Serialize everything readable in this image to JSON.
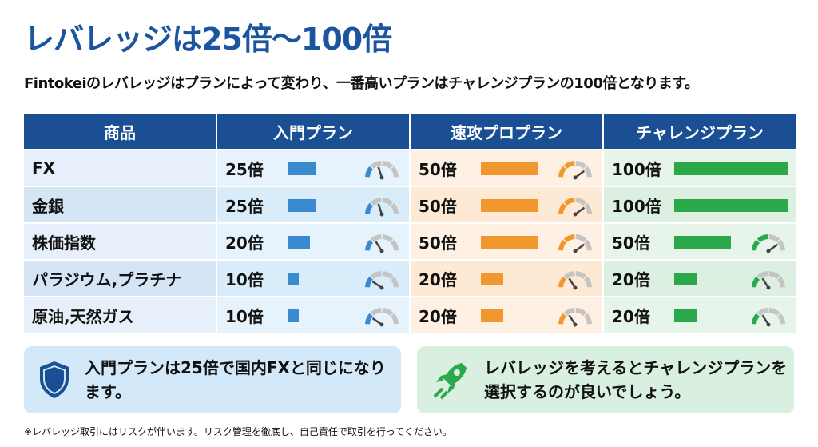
{
  "title": "レバレッジは25倍〜100倍",
  "subtitle": "Fintokeiのレバレッジはプランによって変わり、一番高いプランはチャレンジプランの100倍となります。",
  "table": {
    "headers": [
      "商品",
      "入門プラン",
      "速攻プロプラン",
      "チャレンジプラン"
    ],
    "rows": [
      {
        "product": "FX",
        "values": [
          25,
          50,
          100
        ],
        "labels": [
          "25倍",
          "50倍",
          "100倍"
        ]
      },
      {
        "product": "金銀",
        "values": [
          25,
          50,
          100
        ],
        "labels": [
          "25倍",
          "50倍",
          "100倍"
        ]
      },
      {
        "product": "株価指数",
        "values": [
          20,
          50,
          50
        ],
        "labels": [
          "20倍",
          "50倍",
          "50倍"
        ]
      },
      {
        "product": "パラジウム,プラチナ",
        "values": [
          10,
          20,
          20
        ],
        "labels": [
          "10倍",
          "20倍",
          "20倍"
        ]
      },
      {
        "product": "原油,天然ガス",
        "values": [
          10,
          20,
          20
        ],
        "labels": [
          "10倍",
          "20倍",
          "20倍"
        ]
      }
    ],
    "plan_colors": [
      "#3a8ad0",
      "#f0982e",
      "#2aa84a"
    ],
    "max": 100
  },
  "notes": {
    "left": "入門プランは25倍で国内FXと同じになります。",
    "right": "レバレッジを考えるとチャレンジプランを選択するのが良いでしょう。"
  },
  "footnote": "※レバレッジ取引にはリスクが伴います。リスク管理を徹底し、自己責任で取引を行ってください。"
}
